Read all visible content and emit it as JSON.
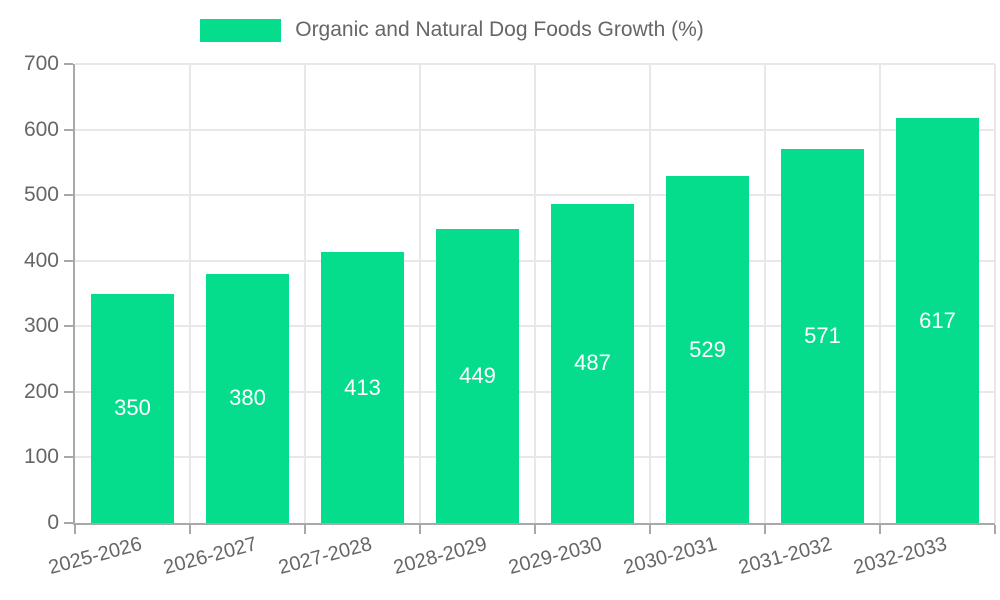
{
  "chart_data": {
    "type": "bar",
    "title": "Organic and Natural Dog Foods Growth (%)",
    "categories": [
      "2025-2026",
      "2026-2027",
      "2027-2028",
      "2028-2029",
      "2029-2030",
      "2030-2031",
      "2031-2032",
      "2032-2033"
    ],
    "series": [
      {
        "name": "Organic and Natural Dog Foods Growth (%)",
        "values": [
          350,
          380,
          413,
          449,
          487,
          529,
          571,
          617
        ]
      }
    ],
    "xlabel": "",
    "ylabel": "",
    "ylim": [
      0,
      700
    ],
    "yticks": [
      0,
      100,
      200,
      300,
      400,
      500,
      600,
      700
    ],
    "grid": true,
    "legend_position": "top",
    "bar_labels_inside": true,
    "x_tick_rotation_deg": -15
  },
  "colors": {
    "bar": "#05DC8C",
    "grid": "#e8e8e8",
    "axis": "#a8a8a8",
    "tick_label": "#666666",
    "bar_label": "#ffffff",
    "background": "#ffffff"
  }
}
